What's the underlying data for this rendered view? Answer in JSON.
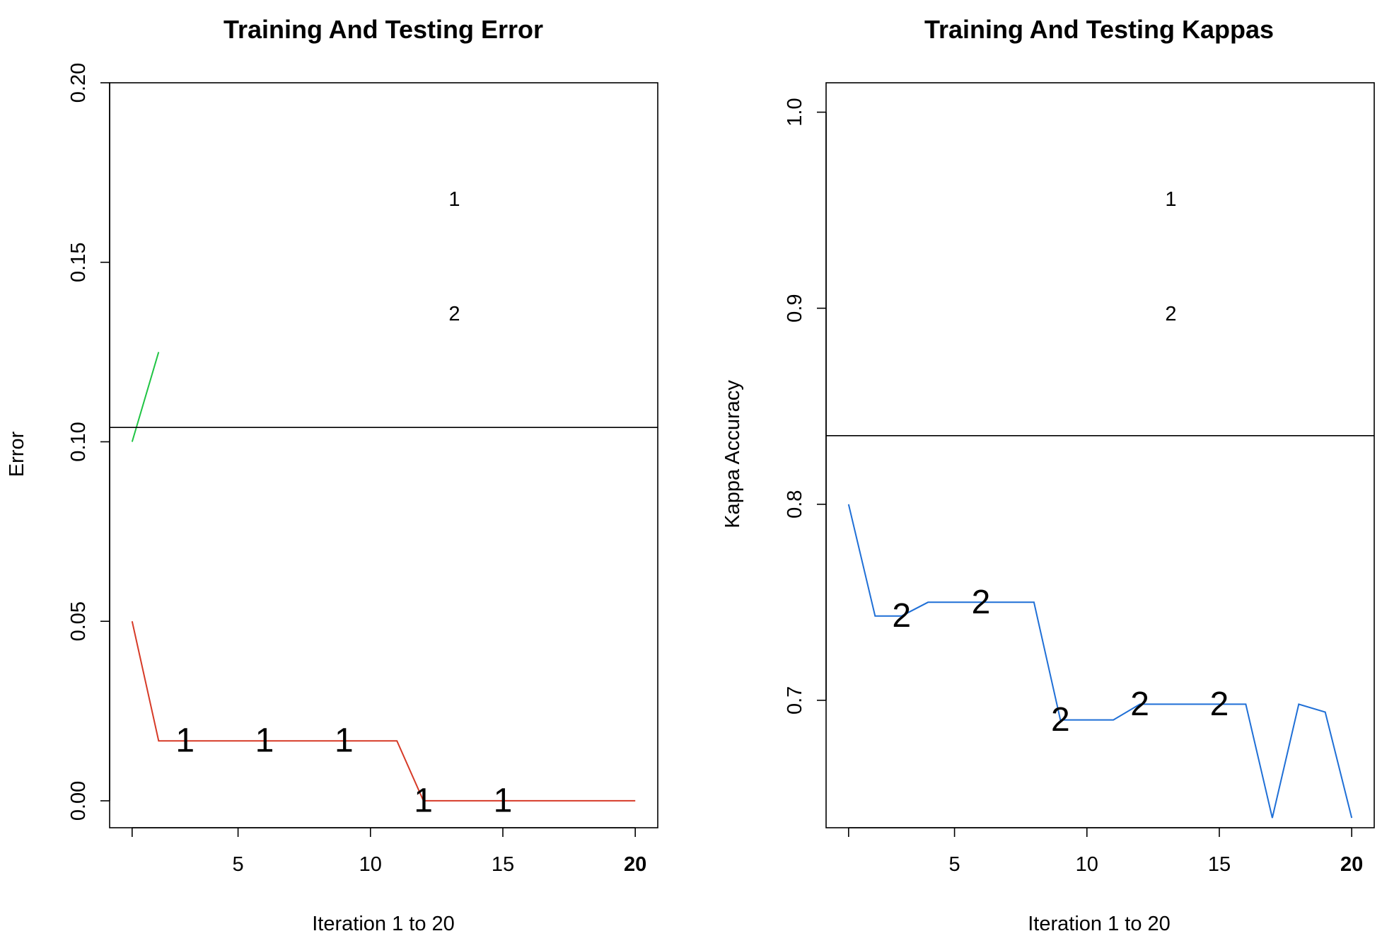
{
  "chart_data": [
    {
      "type": "line",
      "title": "Training And Testing Error",
      "xlabel": "Iteration 1 to 20",
      "ylabel": "Error",
      "xlim": [
        0.15,
        20.85
      ],
      "ylim": [
        -0.0075,
        0.2
      ],
      "xticks": [
        5,
        10,
        15,
        20
      ],
      "xtick_labels": [
        "5",
        "10",
        "15",
        "20"
      ],
      "yticks": [
        0.0,
        0.05,
        0.1,
        0.15,
        0.2
      ],
      "ytick_labels": [
        "0.00",
        "0.05",
        "0.10",
        "0.15",
        "0.20"
      ],
      "legend_labels": [
        "1",
        "2"
      ],
      "legend_box_bottom": 0.104,
      "series": [
        {
          "color": "#d63a27",
          "marker_label": "1",
          "x": [
            1,
            2,
            3,
            4,
            5,
            6,
            7,
            8,
            9,
            10,
            11,
            12,
            13,
            14,
            15,
            16,
            17,
            18,
            19,
            20
          ],
          "values": [
            0.05,
            0.0167,
            0.0167,
            0.0167,
            0.0167,
            0.0167,
            0.0167,
            0.0167,
            0.0167,
            0.0167,
            0.0167,
            0,
            0,
            0,
            0,
            0,
            0,
            0,
            0,
            0
          ],
          "marker_x": [
            3,
            6,
            9,
            12,
            15
          ]
        },
        {
          "color": "#1fc443",
          "marker_label": "2",
          "x": [
            1,
            2
          ],
          "values": [
            0.1,
            0.125
          ],
          "marker_x": []
        }
      ]
    },
    {
      "type": "line",
      "title": "Training And Testing Kappas",
      "xlabel": "Iteration 1 to 20",
      "ylabel": "Kappa Accuracy",
      "xlim": [
        0.15,
        20.85
      ],
      "ylim": [
        0.635,
        1.015
      ],
      "xticks": [
        5,
        10,
        15,
        20
      ],
      "xtick_labels": [
        "5",
        "10",
        "15",
        "20"
      ],
      "yticks": [
        0.7,
        0.8,
        0.9,
        1.0
      ],
      "ytick_labels": [
        "0.7",
        "0.8",
        "0.9",
        "1.0"
      ],
      "legend_labels": [
        "1",
        "2"
      ],
      "legend_box_bottom": 0.835,
      "series": [
        {
          "color": "#1f6fd6",
          "marker_label": "2",
          "x": [
            1,
            2,
            3,
            4,
            5,
            6,
            7,
            8,
            9,
            10,
            11,
            12,
            13,
            14,
            15,
            16,
            17,
            18,
            19,
            20
          ],
          "values": [
            0.8,
            0.743,
            0.743,
            0.75,
            0.75,
            0.75,
            0.75,
            0.75,
            0.69,
            0.69,
            0.69,
            0.698,
            0.698,
            0.698,
            0.698,
            0.698,
            0.64,
            0.698,
            0.694,
            0.64
          ],
          "marker_x": [
            3,
            6,
            9,
            12,
            15
          ]
        }
      ]
    }
  ]
}
